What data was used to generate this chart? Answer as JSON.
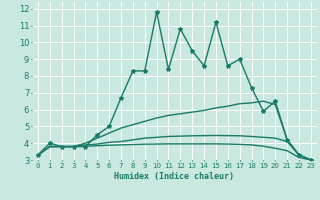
{
  "xlabel": "Humidex (Indice chaleur)",
  "ylabel": "",
  "bg_color": "#c8e8e0",
  "grid_color": "#ffffff",
  "line_color": "#1a7a6a",
  "xlim": [
    -0.5,
    23.5
  ],
  "ylim": [
    3,
    12.4
  ],
  "yticks": [
    3,
    4,
    5,
    6,
    7,
    8,
    9,
    10,
    11,
    12
  ],
  "xticks": [
    0,
    1,
    2,
    3,
    4,
    5,
    6,
    7,
    8,
    9,
    10,
    11,
    12,
    13,
    14,
    15,
    16,
    17,
    18,
    19,
    20,
    21,
    22,
    23
  ],
  "lines": [
    {
      "x": [
        0,
        1,
        2,
        3,
        4,
        5,
        6,
        7,
        8,
        9,
        10,
        11,
        12,
        13,
        14,
        15,
        16,
        17,
        18,
        19,
        20,
        21,
        22,
        23
      ],
      "y": [
        3.3,
        4.0,
        3.8,
        3.8,
        3.8,
        4.5,
        5.0,
        6.7,
        8.3,
        8.3,
        11.8,
        8.4,
        10.8,
        9.5,
        8.6,
        11.2,
        8.6,
        9.0,
        7.3,
        5.9,
        6.5,
        4.2,
        3.3,
        3.0
      ],
      "marker": "*",
      "linewidth": 1.0,
      "markersize": 3
    },
    {
      "x": [
        0,
        1,
        2,
        3,
        4,
        5,
        6,
        7,
        8,
        9,
        10,
        11,
        12,
        13,
        14,
        15,
        16,
        17,
        18,
        19,
        20,
        21,
        22,
        23
      ],
      "y": [
        3.3,
        3.8,
        3.8,
        3.8,
        4.0,
        4.3,
        4.6,
        4.9,
        5.1,
        5.3,
        5.5,
        5.65,
        5.75,
        5.85,
        5.95,
        6.1,
        6.2,
        6.35,
        6.4,
        6.5,
        6.3,
        4.2,
        3.3,
        3.0
      ],
      "marker": null,
      "linewidth": 1.0,
      "markersize": 0
    },
    {
      "x": [
        0,
        1,
        2,
        3,
        4,
        5,
        6,
        7,
        8,
        9,
        10,
        11,
        12,
        13,
        14,
        15,
        16,
        17,
        18,
        19,
        20,
        21,
        22,
        23
      ],
      "y": [
        3.3,
        3.8,
        3.8,
        3.8,
        3.9,
        3.95,
        4.05,
        4.1,
        4.2,
        4.3,
        4.35,
        4.4,
        4.42,
        4.44,
        4.45,
        4.46,
        4.45,
        4.44,
        4.4,
        4.35,
        4.3,
        4.1,
        3.3,
        3.0
      ],
      "marker": null,
      "linewidth": 1.0,
      "markersize": 0
    },
    {
      "x": [
        0,
        1,
        2,
        3,
        4,
        5,
        6,
        7,
        8,
        9,
        10,
        11,
        12,
        13,
        14,
        15,
        16,
        17,
        18,
        19,
        20,
        21,
        22,
        23
      ],
      "y": [
        3.3,
        3.8,
        3.8,
        3.8,
        3.82,
        3.85,
        3.88,
        3.9,
        3.92,
        3.94,
        3.95,
        3.96,
        3.96,
        3.96,
        3.96,
        3.96,
        3.95,
        3.93,
        3.9,
        3.82,
        3.7,
        3.55,
        3.15,
        3.0
      ],
      "marker": null,
      "linewidth": 1.0,
      "markersize": 0
    }
  ]
}
